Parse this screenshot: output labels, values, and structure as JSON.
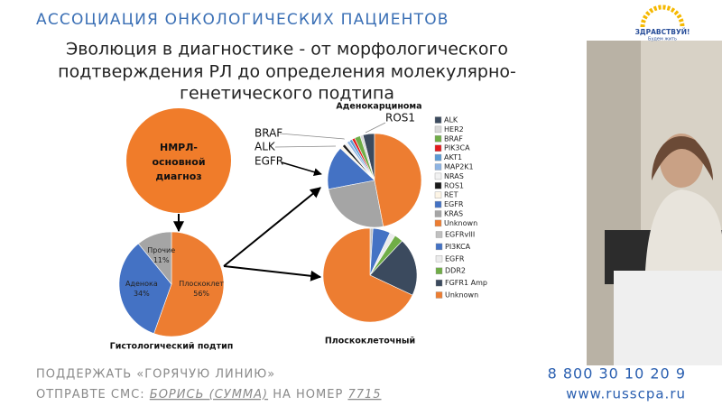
{
  "header": {
    "title": "АССОЦИАЦИЯ ОНКОЛОГИЧЕСКИХ ПАЦИЕНТОВ",
    "logo": "ЗДРАВСТВУЙ!",
    "logo_sub": "Будем жить"
  },
  "slide": {
    "title": [
      "Эволюция в диагностике - от морфологического",
      "подтверждения РЛ до определения молекулярно-",
      "генетического подтипа"
    ],
    "diagnosis": [
      "НМРЛ-",
      "основной",
      "диагноз"
    ],
    "annotations": [
      "BRAF",
      "ALK",
      "EGFR",
      "ROS1"
    ]
  },
  "chart_data": [
    {
      "type": "pie",
      "title": "Гистологический подтип",
      "categories": [
        "Плоскоклет",
        "Аденока",
        "Прочие"
      ],
      "values": [
        56,
        34,
        11
      ],
      "value_labels": [
        "56%",
        "34%",
        "11%"
      ],
      "colors": [
        "#ed7d31",
        "#4472c4",
        "#a5a5a5"
      ]
    },
    {
      "type": "pie",
      "title": "Аденокарцинома",
      "categories": [
        "ALK",
        "HER2",
        "BRAF",
        "PIK3CA",
        "AKT1",
        "MAP2K1",
        "NRAS",
        "ROS1",
        "RET",
        "EGFR",
        "KRAS",
        "Unknown"
      ],
      "values": [
        4,
        1,
        2,
        1,
        1,
        1,
        1,
        1,
        1,
        15,
        25,
        47
      ],
      "colors": [
        "#3b4a5e",
        "#d9d9d9",
        "#70ad47",
        "#e31a1c",
        "#5b9bd5",
        "#8eb4e3",
        "#f2f2f2",
        "#1a1a1a",
        "#fdf5e6",
        "#4472c4",
        "#a5a5a5",
        "#ed7d31"
      ]
    },
    {
      "type": "pie",
      "title": "Плоскоклеточный",
      "categories": [
        "EGFRvIII",
        "PI3KCA",
        "EGFR",
        "DDR2",
        "FGFR1 Amp",
        "Unknown"
      ],
      "values": [
        1,
        6,
        2,
        3,
        20,
        68
      ],
      "colors": [
        "#c0c0c0",
        "#4472c4",
        "#ececec",
        "#70ad47",
        "#3b4a5e",
        "#ed7d31"
      ]
    }
  ],
  "footer": {
    "line1": "ПОДДЕРЖАТЬ «ГОРЯЧУЮ ЛИНИЮ»",
    "sms": [
      "ОТПРАВТЕ СМС: ",
      "БОРИСЬ (СУММА)",
      " НА НОМЕР ",
      "7715"
    ],
    "phone": "8 800 30 10 20 9",
    "site": "www.russcpa.ru"
  }
}
